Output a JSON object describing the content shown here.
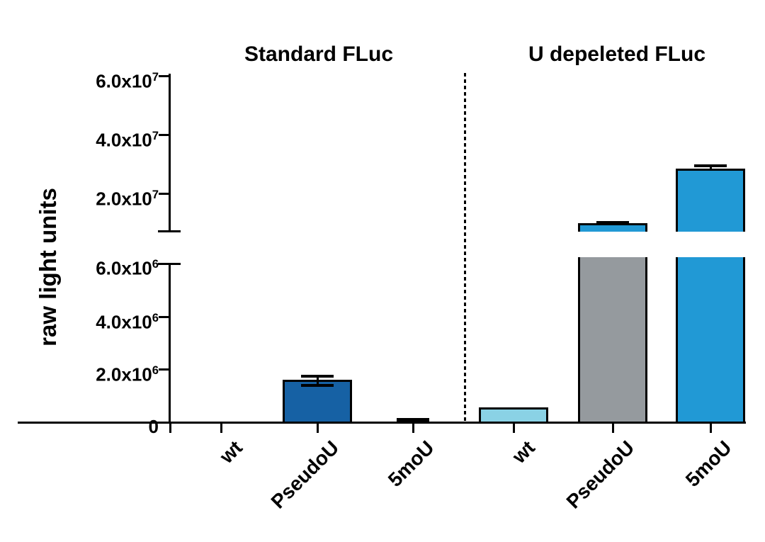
{
  "figure": {
    "title_left": "Standard FLuc",
    "title_right": "U depeleted FLuc",
    "ylabel": "raw light units"
  },
  "chart_data": {
    "type": "bar",
    "title": "",
    "group_titles": [
      "Standard FLuc",
      "U depeleted FLuc"
    ],
    "ylabel": "raw light units",
    "xlabel": "",
    "categories": [
      "wt",
      "PseudoU",
      "5moU",
      "wt",
      "PseudoU",
      "5moU"
    ],
    "series": [
      {
        "group": "Standard FLuc",
        "category": "wt",
        "value": 10000,
        "error": 0,
        "color": "#1661a4"
      },
      {
        "group": "Standard FLuc",
        "category": "PseudoU",
        "value": 1550000,
        "error": 180000,
        "color": "#1661a4"
      },
      {
        "group": "Standard FLuc",
        "category": "5moU",
        "value": 30000,
        "error": 50000,
        "color": "#1661a4"
      },
      {
        "group": "U depeleted FLuc",
        "category": "wt",
        "value": 500000,
        "error": 0,
        "color": "#8ad2e5"
      },
      {
        "group": "U depeleted FLuc",
        "category": "PseudoU",
        "value": 9400000,
        "error": 800000,
        "color": "#959a9e",
        "upper_piece_color": "#2199d5"
      },
      {
        "group": "U depeleted FLuc",
        "category": "5moU",
        "value": 28000000,
        "error": 1500000,
        "color": "#2199d5"
      }
    ],
    "y_axis": {
      "label": "raw light units",
      "broken_axis": true,
      "lower_segment": {
        "range": [
          0,
          6200000
        ],
        "tick_labels": [
          "0",
          "2.0x10⁶",
          "4.0x10⁶",
          "6.0x10⁶"
        ],
        "tick_values": [
          0,
          2000000,
          4000000,
          6000000
        ]
      },
      "upper_segment": {
        "range": [
          7700000,
          61000000
        ],
        "tick_labels": [
          "2.0x10⁷",
          "4.0x10⁷",
          "6.0x10⁷"
        ],
        "tick_values": [
          20000000,
          40000000,
          60000000
        ]
      }
    },
    "layout_hints": {
      "grid": false,
      "legend": false,
      "divider": "vertical dotted line between the two groups",
      "bar_outline_color": "#000000",
      "error_bar_color": "#000000"
    }
  }
}
